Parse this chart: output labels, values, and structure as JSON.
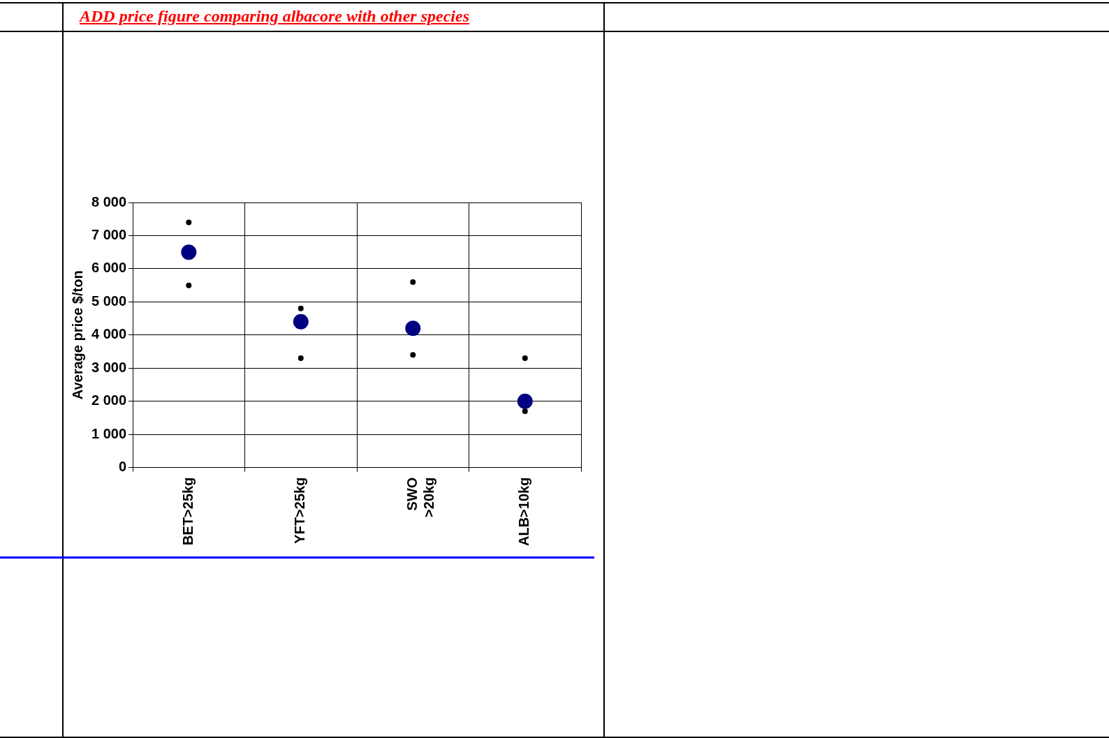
{
  "chart_data": {
    "type": "scatter",
    "title": "ADD price figure comparing albacore with other species",
    "ylabel": "Average price $/ton",
    "categories": [
      "BET>25kg",
      "YFT>25kg",
      "SWO >20kg",
      "ALB>10kg"
    ],
    "series": [
      {
        "color": "#000080",
        "values": [
          6500,
          4400,
          4200,
          2000
        ]
      },
      {
        "color": "#000000",
        "values": [
          7400,
          4800,
          5600,
          3300
        ]
      },
      {
        "color": "#000000",
        "values": [
          5500,
          3300,
          3400,
          1700
        ]
      }
    ],
    "ylim": [
      0,
      8000
    ],
    "yticks": [
      {
        "value": 0,
        "label": "0"
      },
      {
        "value": 1000,
        "label": "1 000"
      },
      {
        "value": 2000,
        "label": "2 000"
      },
      {
        "value": 3000,
        "label": "3 000"
      },
      {
        "value": 4000,
        "label": "4 000"
      },
      {
        "value": 5000,
        "label": "5 000"
      },
      {
        "value": 6000,
        "label": "6 000"
      },
      {
        "value": 7000,
        "label": "7 000"
      },
      {
        "value": 8000,
        "label": "8 000"
      }
    ],
    "grid": true,
    "legend": false,
    "marker": "circle"
  }
}
